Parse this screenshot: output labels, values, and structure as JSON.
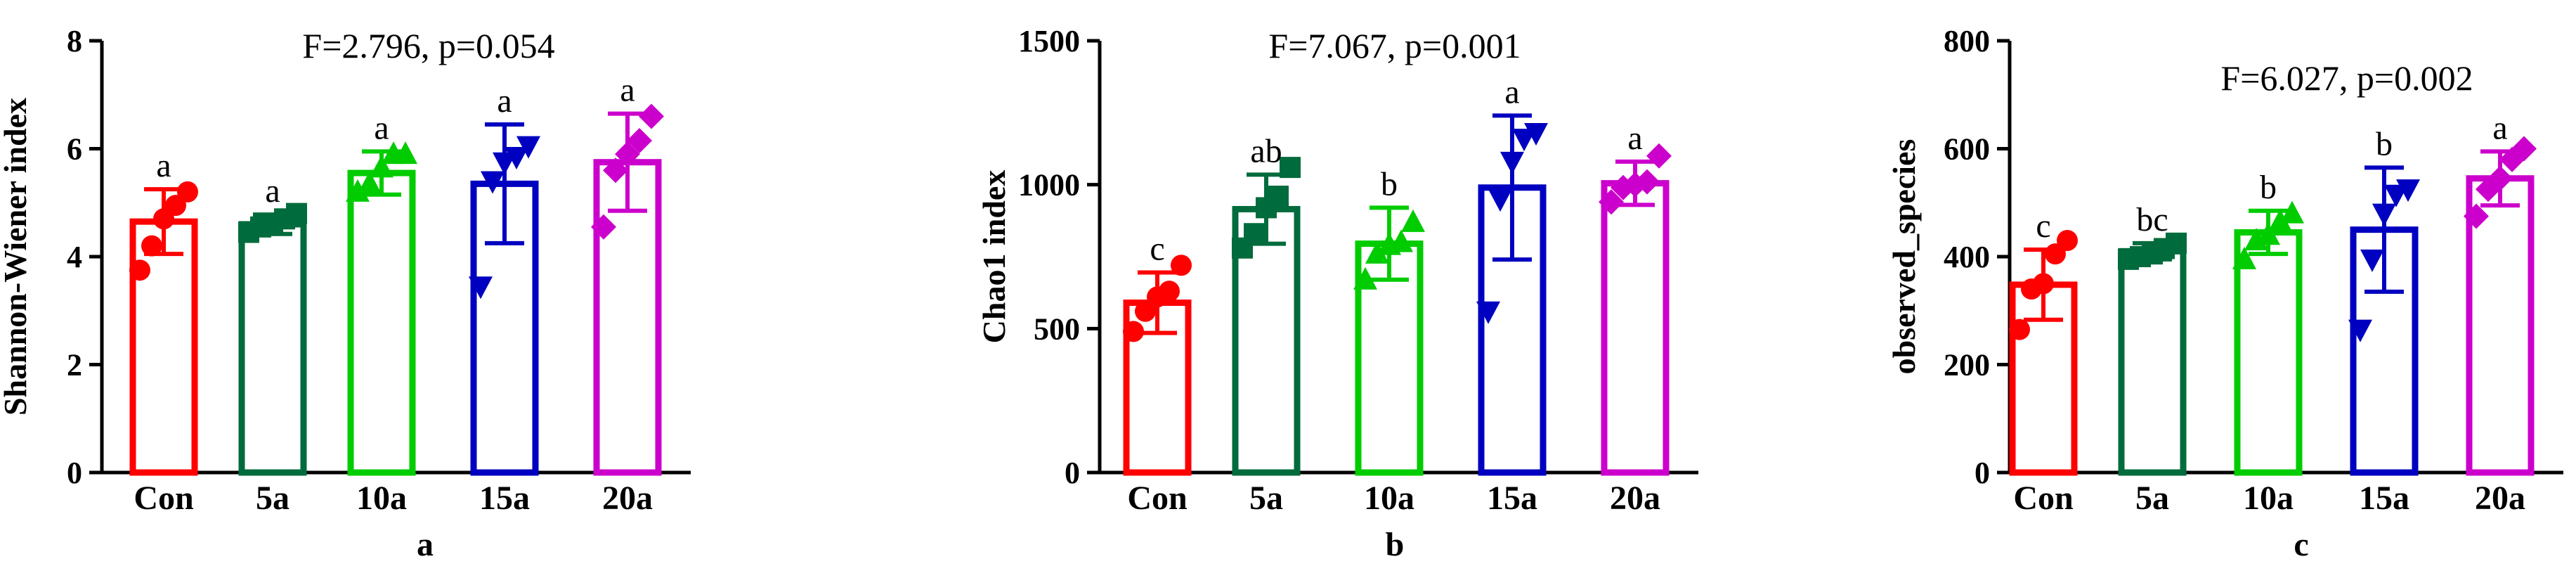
{
  "chart_data": [
    {
      "type": "bar",
      "panel_label": "a",
      "stat": "F=2.796, p=0.054",
      "ylabel": "Shannon-Wiener index",
      "xlabel": "",
      "ylim": [
        0,
        8
      ],
      "yticks": [
        0,
        2,
        4,
        6,
        8
      ],
      "categories": [
        "Con",
        "5a",
        "10a",
        "15a",
        "20a"
      ],
      "colors": [
        "#ff0000",
        "#006b3c",
        "#00cc00",
        "#0000c0",
        "#cc00cc"
      ],
      "markers": [
        "circle",
        "square",
        "triangle-up",
        "triangle-down",
        "diamond"
      ],
      "means": [
        4.65,
        4.6,
        5.55,
        5.35,
        5.75
      ],
      "sd": [
        0.6,
        0.18,
        0.4,
        1.1,
        0.9
      ],
      "letters": [
        "a",
        "a",
        "a",
        "a",
        "a"
      ],
      "points": [
        [
          3.75,
          4.2,
          4.7,
          4.95,
          5.2
        ],
        [
          4.45,
          4.55,
          4.6,
          4.7,
          4.8
        ],
        [
          5.2,
          5.35,
          5.65,
          5.9,
          5.9
        ],
        [
          3.45,
          5.4,
          5.75,
          5.85,
          6.05
        ],
        [
          4.55,
          5.6,
          5.9,
          6.15,
          6.6
        ]
      ]
    },
    {
      "type": "bar",
      "panel_label": "b",
      "stat": "F=7.067, p=0.001",
      "ylabel": "Chao1 index",
      "xlabel": "",
      "ylim": [
        0,
        1500
      ],
      "yticks": [
        0,
        500,
        1000,
        1500
      ],
      "categories": [
        "Con",
        "5a",
        "10a",
        "15a",
        "20a"
      ],
      "colors": [
        "#ff0000",
        "#006b3c",
        "#00cc00",
        "#0000c0",
        "#cc00cc"
      ],
      "markers": [
        "circle",
        "square",
        "triangle-up",
        "triangle-down",
        "diamond"
      ],
      "means": [
        590,
        915,
        795,
        990,
        1005
      ],
      "sd": [
        105,
        120,
        125,
        250,
        75
      ],
      "letters": [
        "c",
        "ab",
        "b",
        "a",
        "a"
      ],
      "points": [
        [
          490,
          560,
          610,
          630,
          720
        ],
        [
          780,
          830,
          920,
          960,
          1060
        ],
        [
          670,
          760,
          790,
          800,
          870
        ],
        [
          560,
          950,
          1080,
          1160,
          1180
        ],
        [
          940,
          990,
          1000,
          1010,
          1100
        ]
      ]
    },
    {
      "type": "bar",
      "panel_label": "c",
      "stat": "F=6.027, p=0.002",
      "ylabel": "observed_species",
      "xlabel": "",
      "ylim": [
        0,
        800
      ],
      "yticks": [
        0,
        200,
        400,
        600,
        800
      ],
      "categories": [
        "Con",
        "5a",
        "10a",
        "15a",
        "20a"
      ],
      "colors": [
        "#ff0000",
        "#006b3c",
        "#00cc00",
        "#0000c0",
        "#cc00cc"
      ],
      "markers": [
        "circle",
        "square",
        "triangle-up",
        "triangle-down",
        "diamond"
      ],
      "means": [
        348,
        410,
        445,
        450,
        545
      ],
      "sd": [
        65,
        15,
        40,
        115,
        50
      ],
      "letters": [
        "c",
        "bc",
        "b",
        "b",
        "a"
      ],
      "points": [
        [
          265,
          340,
          350,
          405,
          430
        ],
        [
          395,
          400,
          405,
          415,
          425
        ],
        [
          395,
          430,
          440,
          465,
          480
        ],
        [
          265,
          395,
          480,
          515,
          525
        ],
        [
          475,
          525,
          545,
          580,
          600
        ]
      ]
    }
  ]
}
